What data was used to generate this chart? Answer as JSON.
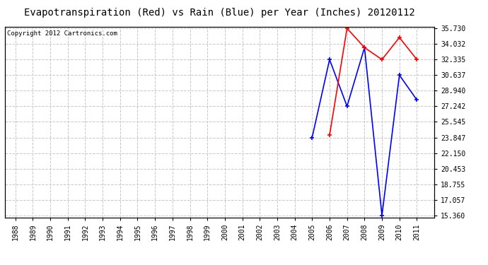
{
  "title": "Evapotranspiration (Red) vs Rain (Blue) per Year (Inches) 20120112",
  "copyright_text": "Copyright 2012 Cartronics.com",
  "years": [
    1988,
    1989,
    1990,
    1991,
    1992,
    1993,
    1994,
    1995,
    1996,
    1997,
    1998,
    1999,
    2000,
    2001,
    2002,
    2003,
    2004,
    2005,
    2006,
    2007,
    2008,
    2009,
    2010,
    2011
  ],
  "rain_blue": [
    null,
    null,
    null,
    null,
    null,
    null,
    null,
    null,
    null,
    null,
    null,
    null,
    null,
    null,
    null,
    null,
    null,
    23.847,
    32.335,
    27.242,
    33.638,
    15.36,
    30.637,
    27.94
  ],
  "evap_red": [
    null,
    null,
    null,
    null,
    null,
    null,
    null,
    null,
    null,
    null,
    null,
    null,
    null,
    null,
    null,
    null,
    null,
    null,
    24.1,
    35.73,
    33.638,
    32.335,
    34.73,
    32.335
  ],
  "ylim_min": 15.36,
  "ylim_max": 35.73,
  "yticks": [
    15.36,
    17.057,
    18.755,
    20.453,
    22.15,
    23.847,
    25.545,
    27.242,
    28.94,
    30.637,
    32.335,
    34.032,
    35.73
  ],
  "background_color": "#ffffff",
  "plot_bg_color": "#ffffff",
  "grid_color": "#c8c8c8",
  "blue_color": "#0000ff",
  "red_color": "#ff0000",
  "title_fontsize": 10,
  "copyright_fontsize": 6.5,
  "tick_fontsize": 7
}
